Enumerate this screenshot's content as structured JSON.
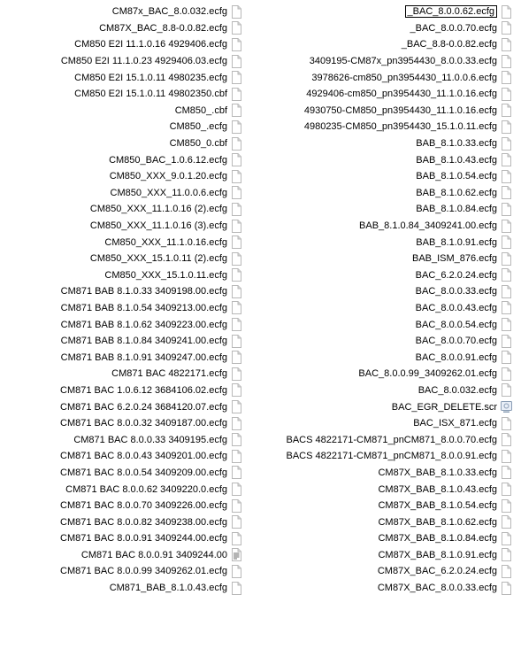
{
  "icon_colors": {
    "page_border": "#b8b8b8",
    "page_fill": "#ffffff",
    "fold": "#d6d6d6",
    "scr_border": "#8a9db5",
    "scr_fill": "#e8eef7",
    "txt_lines": "#6a6a6a"
  },
  "columns": {
    "left": [
      {
        "name": "CM87x_BAC_8.0.032.ecfg",
        "icon": "ecfg"
      },
      {
        "name": "CM87X_BAC_8.8-0.0.82.ecfg",
        "icon": "ecfg"
      },
      {
        "name": "CM850 E2I 11.1.0.16 4929406.ecfg",
        "icon": "ecfg"
      },
      {
        "name": "CM850 E2I 11.1.0.23 4929406.03.ecfg",
        "icon": "ecfg"
      },
      {
        "name": "CM850 E2I 15.1.0.11 4980235.ecfg",
        "icon": "ecfg"
      },
      {
        "name": "CM850 E2I 15.1.0.11 49802350.cbf",
        "icon": "ecfg"
      },
      {
        "name": "CM850_.cbf",
        "icon": "ecfg"
      },
      {
        "name": "CM850_.ecfg",
        "icon": "ecfg"
      },
      {
        "name": "CM850_0.cbf",
        "icon": "ecfg"
      },
      {
        "name": "CM850_BAC_1.0.6.12.ecfg",
        "icon": "ecfg"
      },
      {
        "name": "CM850_XXX_9.0.1.20.ecfg",
        "icon": "ecfg"
      },
      {
        "name": "CM850_XXX_11.0.0.6.ecfg",
        "icon": "ecfg"
      },
      {
        "name": "CM850_XXX_11.1.0.16 (2).ecfg",
        "icon": "ecfg"
      },
      {
        "name": "CM850_XXX_11.1.0.16 (3).ecfg",
        "icon": "ecfg"
      },
      {
        "name": "CM850_XXX_11.1.0.16.ecfg",
        "icon": "ecfg"
      },
      {
        "name": "CM850_XXX_15.1.0.11 (2).ecfg",
        "icon": "ecfg"
      },
      {
        "name": "CM850_XXX_15.1.0.11.ecfg",
        "icon": "ecfg"
      },
      {
        "name": "CM871 BAB 8.1.0.33 3409198.00.ecfg",
        "icon": "ecfg"
      },
      {
        "name": "CM871 BAB 8.1.0.54 3409213.00.ecfg",
        "icon": "ecfg"
      },
      {
        "name": "CM871 BAB 8.1.0.62 3409223.00.ecfg",
        "icon": "ecfg"
      },
      {
        "name": "CM871 BAB 8.1.0.84 3409241.00.ecfg",
        "icon": "ecfg"
      },
      {
        "name": "CM871 BAB 8.1.0.91 3409247.00.ecfg",
        "icon": "ecfg"
      },
      {
        "name": "CM871 BAC                   4822171.ecfg",
        "icon": "ecfg"
      },
      {
        "name": "CM871 BAC 1.0.6.12 3684106.02.ecfg",
        "icon": "ecfg"
      },
      {
        "name": "CM871 BAC 6.2.0.24 3684120.07.ecfg",
        "icon": "ecfg"
      },
      {
        "name": "CM871 BAC 8.0.0.32 3409187.00.ecfg",
        "icon": "ecfg"
      },
      {
        "name": "CM871 BAC 8.0.0.33 3409195.ecfg",
        "icon": "ecfg"
      },
      {
        "name": "CM871 BAC 8.0.0.43 3409201.00.ecfg",
        "icon": "ecfg"
      },
      {
        "name": "CM871 BAC 8.0.0.54 3409209.00.ecfg",
        "icon": "ecfg"
      },
      {
        "name": "CM871 BAC 8.0.0.62 3409220.0.ecfg",
        "icon": "ecfg"
      },
      {
        "name": "CM871 BAC 8.0.0.70 3409226.00.ecfg",
        "icon": "ecfg"
      },
      {
        "name": "CM871 BAC 8.0.0.82 3409238.00.ecfg",
        "icon": "ecfg"
      },
      {
        "name": "CM871 BAC 8.0.0.91 3409244.00.ecfg",
        "icon": "ecfg"
      },
      {
        "name": "CM871 BAC 8.0.0.91 3409244.00",
        "icon": "txt"
      },
      {
        "name": "CM871 BAC 8.0.0.99 3409262.01.ecfg",
        "icon": "ecfg"
      },
      {
        "name": "CM871_BAB_8.1.0.43.ecfg",
        "icon": "ecfg"
      }
    ],
    "right": [
      {
        "name": "_BAC_8.0.0.62.ecfg",
        "icon": "ecfg",
        "editing": true
      },
      {
        "name": "_BAC_8.0.0.70.ecfg",
        "icon": "ecfg"
      },
      {
        "name": "_BAC_8.8-0.0.82.ecfg",
        "icon": "ecfg"
      },
      {
        "name": "3409195-CM87x_pn3954430_8.0.0.33.ecfg",
        "icon": "ecfg"
      },
      {
        "name": "3978626-cm850_pn3954430_11.0.0.6.ecfg",
        "icon": "ecfg"
      },
      {
        "name": "4929406-cm850_pn3954430_11.1.0.16.ecfg",
        "icon": "ecfg"
      },
      {
        "name": "4930750-CM850_pn3954430_11.1.0.16.ecfg",
        "icon": "ecfg"
      },
      {
        "name": "4980235-CM850_pn3954430_15.1.0.11.ecfg",
        "icon": "ecfg"
      },
      {
        "name": "BAB_8.1.0.33.ecfg",
        "icon": "ecfg"
      },
      {
        "name": "BAB_8.1.0.43.ecfg",
        "icon": "ecfg"
      },
      {
        "name": "BAB_8.1.0.54.ecfg",
        "icon": "ecfg"
      },
      {
        "name": "BAB_8.1.0.62.ecfg",
        "icon": "ecfg"
      },
      {
        "name": "BAB_8.1.0.84.ecfg",
        "icon": "ecfg"
      },
      {
        "name": "BAB_8.1.0.84_3409241.00.ecfg",
        "icon": "ecfg"
      },
      {
        "name": "BAB_8.1.0.91.ecfg",
        "icon": "ecfg"
      },
      {
        "name": "BAB_ISM_876.ecfg",
        "icon": "ecfg"
      },
      {
        "name": "BAC_6.2.0.24.ecfg",
        "icon": "ecfg"
      },
      {
        "name": "BAC_8.0.0.33.ecfg",
        "icon": "ecfg"
      },
      {
        "name": "BAC_8.0.0.43.ecfg",
        "icon": "ecfg"
      },
      {
        "name": "BAC_8.0.0.54.ecfg",
        "icon": "ecfg"
      },
      {
        "name": "BAC_8.0.0.70.ecfg",
        "icon": "ecfg"
      },
      {
        "name": "BAC_8.0.0.91.ecfg",
        "icon": "ecfg"
      },
      {
        "name": "BAC_8.0.0.99_3409262.01.ecfg",
        "icon": "ecfg"
      },
      {
        "name": "BAC_8.0.032.ecfg",
        "icon": "ecfg"
      },
      {
        "name": "BAC_EGR_DELETE.scr",
        "icon": "scr"
      },
      {
        "name": "BAC_ISX_871.ecfg",
        "icon": "ecfg"
      },
      {
        "name": "BACS 4822171-CM871_pnCM871_8.0.0.70.ecfg",
        "icon": "ecfg"
      },
      {
        "name": "BACS 4822171-CM871_pnCM871_8.0.0.91.ecfg",
        "icon": "ecfg"
      },
      {
        "name": "CM87X_BAB_8.1.0.33.ecfg",
        "icon": "ecfg"
      },
      {
        "name": "CM87X_BAB_8.1.0.43.ecfg",
        "icon": "ecfg"
      },
      {
        "name": "CM87X_BAB_8.1.0.54.ecfg",
        "icon": "ecfg"
      },
      {
        "name": "CM87X_BAB_8.1.0.62.ecfg",
        "icon": "ecfg"
      },
      {
        "name": "CM87X_BAB_8.1.0.84.ecfg",
        "icon": "ecfg"
      },
      {
        "name": "CM87X_BAB_8.1.0.91.ecfg",
        "icon": "ecfg"
      },
      {
        "name": "CM87X_BAC_6.2.0.24.ecfg",
        "icon": "ecfg"
      },
      {
        "name": "CM87X_BAC_8.0.0.33.ecfg",
        "icon": "ecfg"
      }
    ]
  }
}
